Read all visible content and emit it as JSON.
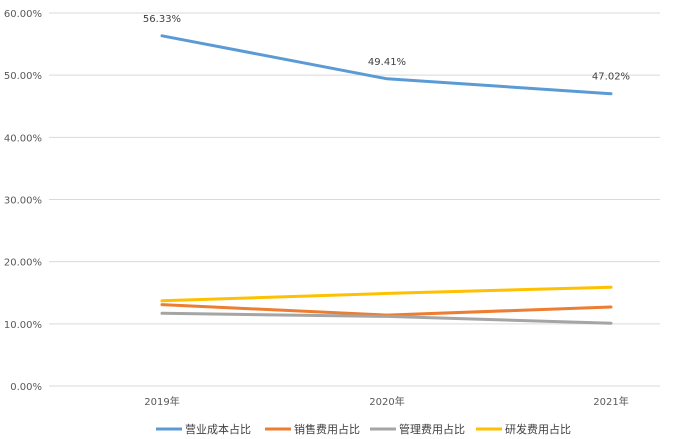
{
  "chart_data": {
    "type": "line",
    "categories": [
      "2019年",
      "2020年",
      "2021年"
    ],
    "ylim": [
      0,
      60
    ],
    "yticks": [
      "0.00%",
      "10.00%",
      "20.00%",
      "30.00%",
      "40.00%",
      "50.00%",
      "60.00%"
    ],
    "grid": true,
    "legend_position": "bottom",
    "series": [
      {
        "name": "营业成本占比",
        "values": [
          56.33,
          49.41,
          47.02
        ],
        "color": "#5b9bd5",
        "labels": [
          "56.33%",
          "49.41%",
          "47.02%"
        ]
      },
      {
        "name": "销售费用占比",
        "values": [
          13.1,
          11.4,
          12.7
        ],
        "color": "#ed7d31"
      },
      {
        "name": "管理费用占比",
        "values": [
          11.7,
          11.2,
          10.1
        ],
        "color": "#a5a5a5"
      },
      {
        "name": "研发费用占比",
        "values": [
          13.7,
          14.9,
          15.9
        ],
        "color": "#ffc000"
      }
    ]
  }
}
